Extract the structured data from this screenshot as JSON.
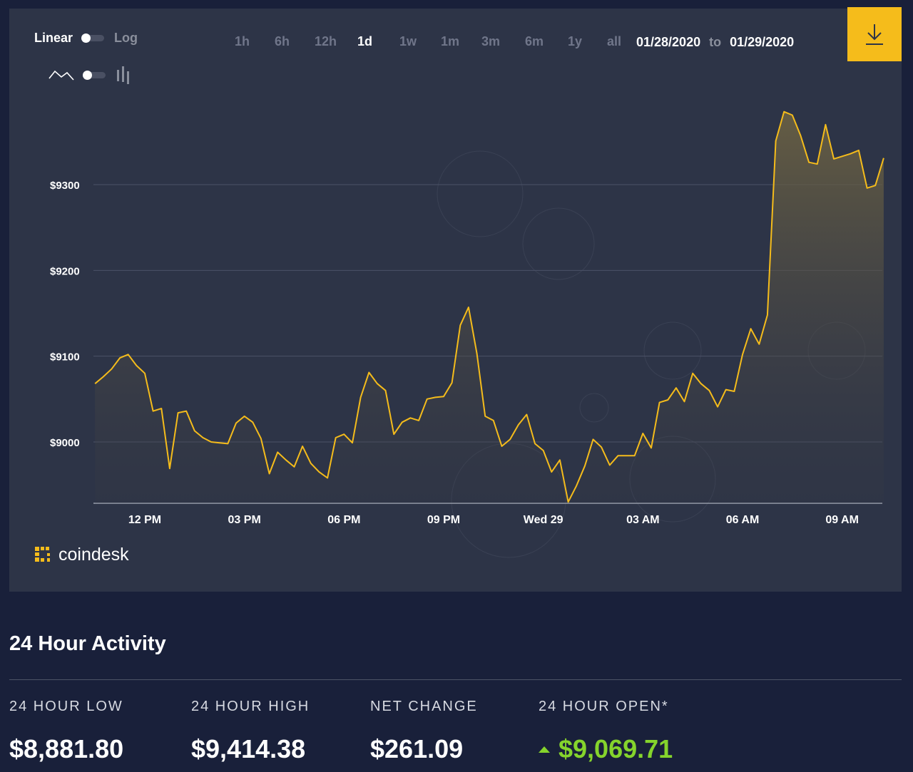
{
  "controls": {
    "scale_linear": "Linear",
    "scale_log": "Log",
    "ranges": [
      {
        "label": "1h",
        "active": false
      },
      {
        "label": "6h",
        "active": false
      },
      {
        "label": "12h",
        "active": false
      },
      {
        "label": "1d",
        "active": true
      },
      {
        "label": "1w",
        "active": false
      },
      {
        "label": "1m",
        "active": false
      },
      {
        "label": "3m",
        "active": false
      },
      {
        "label": "6m",
        "active": false
      },
      {
        "label": "1y",
        "active": false
      },
      {
        "label": "all",
        "active": false
      }
    ],
    "date_from": "01/28/2020",
    "date_to_word": "to",
    "date_to": "01/29/2020",
    "download_icon": "download-icon"
  },
  "brand": {
    "name": "coindesk",
    "icon": "coindesk-logo-icon"
  },
  "colors": {
    "accent": "#f5bc1b",
    "positive": "#85d42c",
    "panel": "#2d3447",
    "background": "#19203a"
  },
  "chart_data": {
    "type": "area",
    "ylim": [
      8940,
      9420
    ],
    "yticks": [
      "$9000",
      "$9100",
      "$9200",
      "$9300"
    ],
    "ytick_values": [
      9000,
      9100,
      9200,
      9300
    ],
    "xticks": [
      "12 PM",
      "03 PM",
      "06 PM",
      "09 PM",
      "Wed 29",
      "03 AM",
      "06 AM",
      "09 AM"
    ],
    "xtick_hours": [
      12,
      15,
      18,
      21,
      24,
      27,
      30,
      33
    ],
    "x_start_hour": 10.5,
    "x_end_hour": 34.25,
    "series": [
      {
        "points": [
          [
            10.5,
            9068
          ],
          [
            10.75,
            9076
          ],
          [
            11.0,
            9085
          ],
          [
            11.25,
            9098
          ],
          [
            11.5,
            9102
          ],
          [
            11.75,
            9089
          ],
          [
            12.0,
            9080
          ],
          [
            12.25,
            9036
          ],
          [
            12.5,
            9039
          ],
          [
            12.75,
            8969
          ],
          [
            13.0,
            9034
          ],
          [
            13.25,
            9036
          ],
          [
            13.5,
            9013
          ],
          [
            13.75,
            9005
          ],
          [
            14.0,
            9000
          ],
          [
            14.25,
            8999
          ],
          [
            14.5,
            8998
          ],
          [
            14.75,
            9022
          ],
          [
            15.0,
            9030
          ],
          [
            15.25,
            9023
          ],
          [
            15.5,
            9004
          ],
          [
            15.75,
            8963
          ],
          [
            16.0,
            8988
          ],
          [
            16.25,
            8979
          ],
          [
            16.5,
            8971
          ],
          [
            16.75,
            8995
          ],
          [
            17.0,
            8975
          ],
          [
            17.25,
            8965
          ],
          [
            17.5,
            8958
          ],
          [
            17.75,
            9005
          ],
          [
            18.0,
            9009
          ],
          [
            18.25,
            8999
          ],
          [
            18.5,
            9052
          ],
          [
            18.75,
            9081
          ],
          [
            19.0,
            9068
          ],
          [
            19.25,
            9060
          ],
          [
            19.5,
            9009
          ],
          [
            19.75,
            9023
          ],
          [
            20.0,
            9028
          ],
          [
            20.25,
            9025
          ],
          [
            20.5,
            9050
          ],
          [
            20.75,
            9052
          ],
          [
            21.0,
            9053
          ],
          [
            21.25,
            9069
          ],
          [
            21.5,
            9136
          ],
          [
            21.75,
            9157
          ],
          [
            22.0,
            9103
          ],
          [
            22.25,
            9030
          ],
          [
            22.5,
            9025
          ],
          [
            22.75,
            8995
          ],
          [
            23.0,
            9003
          ],
          [
            23.25,
            9020
          ],
          [
            23.5,
            9032
          ],
          [
            23.75,
            8998
          ],
          [
            24.0,
            8990
          ],
          [
            24.25,
            8965
          ],
          [
            24.5,
            8979
          ],
          [
            24.75,
            8930
          ],
          [
            25.0,
            8949
          ],
          [
            25.25,
            8972
          ],
          [
            25.5,
            9003
          ],
          [
            25.75,
            8994
          ],
          [
            26.0,
            8973
          ],
          [
            26.25,
            8984
          ],
          [
            26.5,
            8984
          ],
          [
            26.75,
            8984
          ],
          [
            27.0,
            9010
          ],
          [
            27.25,
            8993
          ],
          [
            27.5,
            9046
          ],
          [
            27.75,
            9049
          ],
          [
            28.0,
            9063
          ],
          [
            28.25,
            9047
          ],
          [
            28.5,
            9080
          ],
          [
            28.75,
            9068
          ],
          [
            29.0,
            9060
          ],
          [
            29.25,
            9041
          ],
          [
            29.5,
            9061
          ],
          [
            29.75,
            9059
          ],
          [
            30.0,
            9102
          ],
          [
            30.25,
            9132
          ],
          [
            30.5,
            9114
          ],
          [
            30.75,
            9148
          ],
          [
            31.0,
            9351
          ],
          [
            31.25,
            9385
          ],
          [
            31.5,
            9381
          ],
          [
            31.75,
            9357
          ],
          [
            32.0,
            9326
          ],
          [
            32.25,
            9324
          ],
          [
            32.5,
            9370
          ],
          [
            32.75,
            9330
          ],
          [
            33.0,
            9333
          ],
          [
            33.25,
            9336
          ],
          [
            33.5,
            9340
          ],
          [
            33.75,
            9296
          ],
          [
            34.0,
            9299
          ],
          [
            34.25,
            9331
          ]
        ]
      }
    ]
  },
  "activity": {
    "title": "24 Hour Activity",
    "stats": [
      {
        "label": "24 HOUR LOW",
        "value": "$8,881.80"
      },
      {
        "label": "24 HOUR HIGH",
        "value": "$9,414.38"
      },
      {
        "label": "NET CHANGE",
        "value": "$261.09"
      },
      {
        "label": "24 HOUR OPEN*",
        "value": "$9,069.71",
        "direction": "up"
      }
    ]
  }
}
